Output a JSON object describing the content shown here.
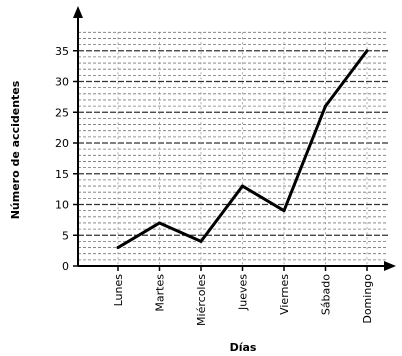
{
  "chart_data": {
    "type": "line",
    "title": "",
    "xlabel": "Días",
    "ylabel": "Número de accidentes",
    "categories": [
      "Lunes",
      "Martes",
      "Miércoles",
      "Jueves",
      "Viernes",
      "Sábado",
      "Domingo"
    ],
    "series": [
      {
        "values": [
          3,
          7,
          4,
          13,
          9,
          26,
          35
        ]
      }
    ],
    "ylim": [
      0,
      38
    ],
    "yticks": [
      0,
      5,
      10,
      15,
      20,
      25,
      30,
      35
    ],
    "grid": true,
    "legend": "none",
    "colors": {
      "line": "#000000",
      "grid": "#555555",
      "axis": "#000000"
    }
  }
}
